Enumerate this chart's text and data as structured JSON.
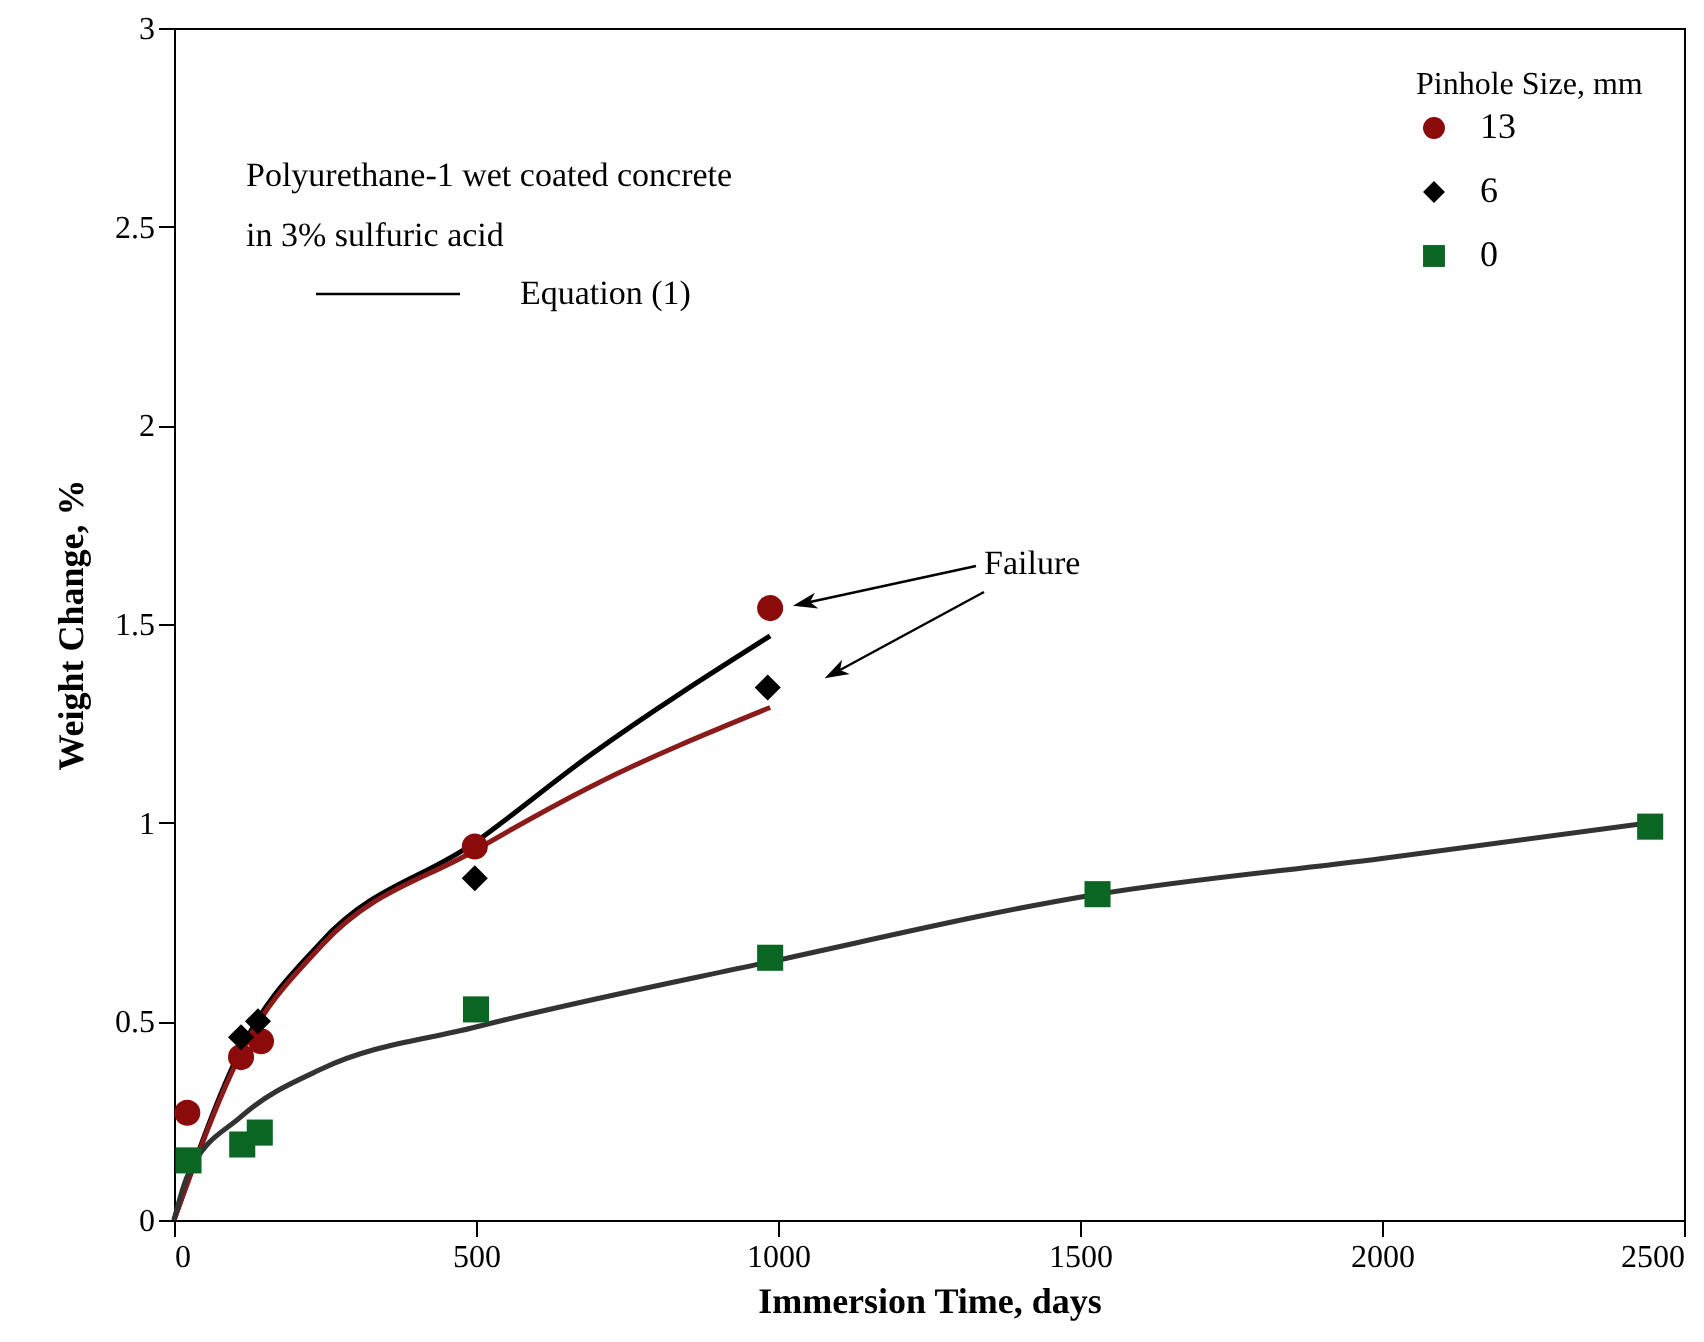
{
  "chart_data": {
    "type": "scatter",
    "xlabel": "Immersion Time, days",
    "ylabel": "Weight Change, %",
    "legend_title": "Pinhole Size, mm",
    "legend": "top right",
    "grid": false,
    "xlim": [
      0,
      2500
    ],
    "xticks": [
      0,
      500,
      1000,
      1500,
      2000,
      2500
    ],
    "ylim": [
      0,
      3
    ],
    "yticks": [
      0,
      0.5,
      1,
      1.5,
      2,
      2.5,
      3
    ],
    "annotations": [
      "Polyurethane-1 wet coated concrete",
      "in 3% sulfuric acid",
      "Equation (1)",
      "Failure"
    ],
    "series": [
      {
        "name": "13",
        "marker": "circle",
        "color": "#8b0a0a",
        "x": [
          22,
          111,
          144,
          498,
          987
        ],
        "values": [
          0.27,
          0.41,
          0.45,
          0.94,
          1.54
        ]
      },
      {
        "name": "6",
        "marker": "diamond",
        "color": "#000000",
        "x": [
          111,
          139,
          498,
          983
        ],
        "values": [
          0.46,
          0.5,
          0.86,
          1.34
        ]
      },
      {
        "name": "0",
        "marker": "square",
        "color": "#0b6623",
        "x": [
          24,
          113,
          142,
          500,
          987,
          1529,
          2444
        ],
        "values": [
          0.15,
          0.19,
          0.22,
          0.53,
          0.66,
          0.82,
          0.99
        ]
      },
      {
        "type": "line",
        "color": "#000000",
        "x": [
          0,
          111,
          244,
          498,
          689,
          987
        ],
        "values": [
          0,
          0.43,
          0.7,
          0.95,
          1.17,
          1.47
        ]
      },
      {
        "type": "line",
        "color": "#8b1a1a",
        "x": [
          0,
          111,
          244,
          498,
          689,
          987
        ],
        "values": [
          0,
          0.42,
          0.69,
          0.93,
          1.09,
          1.29
        ]
      },
      {
        "type": "line",
        "color": "#333333",
        "x": [
          0,
          22,
          111,
          244,
          498,
          987,
          1529,
          2000,
          2444
        ],
        "values": [
          0,
          0.11,
          0.26,
          0.38,
          0.485,
          0.65,
          0.82,
          0.91,
          1.0
        ]
      }
    ]
  }
}
